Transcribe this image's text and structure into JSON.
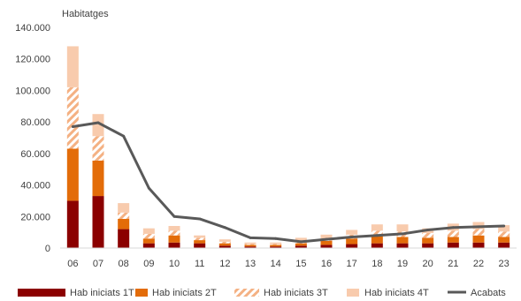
{
  "chart_data": {
    "type": "bar",
    "stacked": true,
    "ylabel": "Habitatges",
    "ylim": [
      0,
      140000
    ],
    "yticks": [
      "0",
      "20.000",
      "40.000",
      "60.000",
      "80.000",
      "100.000",
      "120.000",
      "140.000"
    ],
    "ytick_values": [
      0,
      20000,
      40000,
      60000,
      80000,
      100000,
      120000,
      140000
    ],
    "categories": [
      "06",
      "07",
      "08",
      "09",
      "10",
      "11",
      "12",
      "13",
      "14",
      "15",
      "16",
      "17",
      "18",
      "19",
      "20",
      "21",
      "22",
      "23"
    ],
    "series": [
      {
        "name": "Hab iniciats 1T",
        "type": "bar",
        "color": "#8B0000",
        "values": [
          30000,
          33000,
          12000,
          3000,
          3500,
          3000,
          1500,
          1000,
          1000,
          1500,
          2000,
          2500,
          3000,
          3000,
          3000,
          3500,
          3500,
          3500
        ]
      },
      {
        "name": "Hab iniciats 2T",
        "type": "bar",
        "color": "#E36C09",
        "values": [
          33000,
          22500,
          6500,
          3000,
          4500,
          2000,
          1500,
          1000,
          1000,
          1500,
          2500,
          3500,
          4500,
          4000,
          3500,
          3500,
          4500,
          3500
        ]
      },
      {
        "name": "Hab iniciats 3T",
        "type": "bar",
        "pattern": "hatch",
        "color": "#F4B183",
        "values": [
          39000,
          15500,
          4000,
          3000,
          3000,
          1500,
          1000,
          500,
          500,
          1500,
          1500,
          2500,
          3500,
          3500,
          3000,
          4000,
          4000,
          3500
        ]
      },
      {
        "name": "Hab iniciats 4T",
        "type": "bar",
        "color": "#F8CBAD",
        "values": [
          26000,
          14000,
          6000,
          3500,
          3000,
          1500,
          1500,
          1000,
          1000,
          2000,
          2500,
          3000,
          4000,
          4500,
          3000,
          4500,
          4500,
          4000
        ]
      },
      {
        "name": "Acabats",
        "type": "line",
        "color": "#595959",
        "values": [
          77000,
          79500,
          71000,
          38000,
          20000,
          18500,
          13000,
          6500,
          6000,
          4000,
          5500,
          7000,
          8000,
          9000,
          11500,
          13000,
          13500,
          14000
        ]
      }
    ],
    "grid": false,
    "legend_position": "bottom"
  }
}
